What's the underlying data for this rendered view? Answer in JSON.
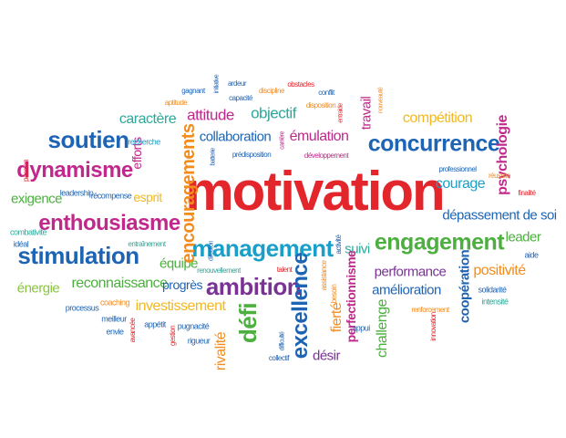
{
  "colors": {
    "red": "#e3262c",
    "blue": "#1e64b4",
    "green": "#4caf3f",
    "magenta": "#c0288c",
    "orange": "#f28c1e",
    "cyan": "#1aa0c8",
    "yellow": "#f2b81e",
    "purple": "#7a3294",
    "lime": "#8ac43f",
    "teal": "#2aa89a",
    "gray": "#555555"
  },
  "words": {
    "motivation": "motivation",
    "management": "management",
    "engagement": "engagement",
    "concurrence": "concurrence",
    "soutien": "soutien",
    "dynamisme": "dynamisme",
    "enthousiasme": "enthousiasme",
    "stimulation": "stimulation",
    "reconnaissance": "reconnaissance",
    "energie": "énergie",
    "investissement": "investissement",
    "ambition": "ambition",
    "defi": "défi",
    "excellence": "excellence",
    "perfectionnisme": "perfectionnisme",
    "performance": "performance",
    "amelioration": "amélioration",
    "cooperation": "coopération",
    "positivite": "positivité",
    "leader": "leader",
    "depassement": "dépassement de soi",
    "courage": "courage",
    "competition": "compétition",
    "psychologie": "psychologie",
    "collaboration": "collaboration",
    "emulation": "émulation",
    "objectif": "objectif",
    "attitude": "attitude",
    "caractere": "caractère",
    "encouragements": "encouragements",
    "efforts": "efforts",
    "esprit": "esprit",
    "equipe": "équipe",
    "progres": "progrès",
    "exigence": "exigence",
    "rivalite": "rivalité",
    "desir": "désir",
    "challenge": "challenge",
    "fierte": "fierté",
    "suivi": "suivi",
    "travail": "travail",
    "recherche": "recherche",
    "passion": "passion",
    "leadership": "leadership",
    "recompense": "récompense",
    "combativite": "combativité",
    "ideal": "idéal",
    "entrainement": "entraînement",
    "renouvellement": "renouvellement",
    "talent": "talent",
    "coaching": "coaching",
    "processus": "processus",
    "meilleur": "meilleur",
    "envie": "envie",
    "avancee": "avancée",
    "appetit": "appétit",
    "gestion": "gestion",
    "pugnacite": "pugnacité",
    "rigueur": "rigueur",
    "collectif": "collectif",
    "difficulte": "difficulté",
    "appui": "appui",
    "assistance": "assistance",
    "besoin": "besoin",
    "activite": "activité",
    "innovation": "innovation",
    "renforcement": "renforcement",
    "solidarite": "solidarité",
    "intensite": "intensité",
    "aide": "aide",
    "finalite": "finalité",
    "reussite": "réussite",
    "professionnel": "professionnel",
    "nouveaute": "nouveauté",
    "entraide": "entraide",
    "disposition": "disposition",
    "conflit": "conflit",
    "obstacles": "obstacles",
    "discipline": "discipline",
    "ardeur": "ardeur",
    "capacite": "capacité",
    "initiative": "initiative",
    "gagnant": "gagnant",
    "aptitude": "aptitude",
    "carriere": "carrière",
    "predisposition": "prédisposition",
    "developpement": "développement",
    "batterie": "batterie",
    "direction": "direction"
  }
}
